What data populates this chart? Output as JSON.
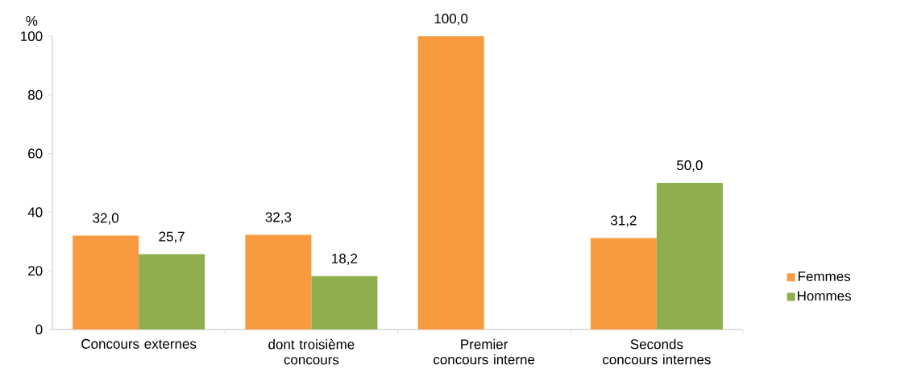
{
  "chart_data": {
    "type": "bar",
    "ylabel": "%",
    "categories": [
      "Concours externes",
      "dont troisième concours",
      "Premier concours interne",
      "Seconds concours internes"
    ],
    "series": [
      {
        "name": "Femmes",
        "color": "#f79a40",
        "values": [
          32.0,
          32.3,
          100.0,
          31.2
        ],
        "value_labels": [
          "32,0",
          "32,3",
          "100,0",
          "31,2"
        ]
      },
      {
        "name": "Hommes",
        "color": "#8faf4f",
        "values": [
          25.7,
          18.2,
          null,
          50.0
        ],
        "value_labels": [
          "25,7",
          "18,2",
          null,
          "50,0"
        ]
      }
    ],
    "ylim": [
      0,
      100
    ],
    "yticks": [
      0,
      20,
      40,
      60,
      80,
      100
    ],
    "legend": "right"
  }
}
